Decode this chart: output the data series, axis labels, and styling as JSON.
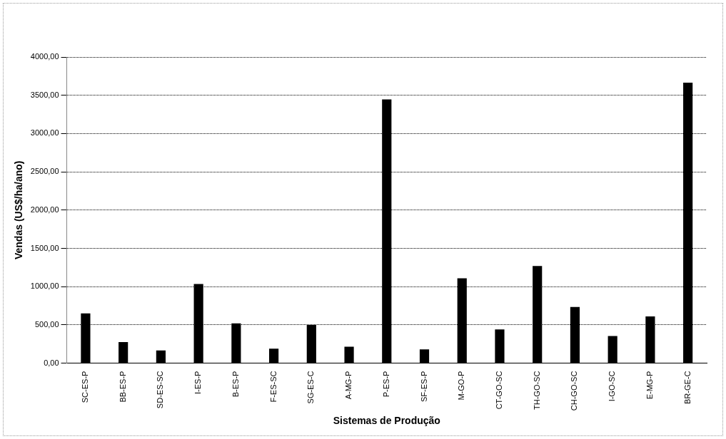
{
  "chart_data": {
    "type": "bar",
    "xlabel": "Sistemas de Produção",
    "ylabel": "Vendas (US$/ha/ano)",
    "categories": [
      "SC-ES-P",
      "BB-ES-P",
      "SD-ES-SC",
      "I-ES-P",
      "B-ES-P",
      "F-ES-SC",
      "SG-ES-C",
      "A-MG-P",
      "P-ES-P",
      "SF-ES-P",
      "M-GO-P",
      "CT-GO-SC",
      "TH-GO-SC",
      "CH-GO-SC",
      "I-GO-SC",
      "E-MG-P",
      "BR-GE-C"
    ],
    "values": [
      650,
      275,
      165,
      1035,
      520,
      190,
      500,
      215,
      3445,
      180,
      1110,
      440,
      1270,
      735,
      355,
      610,
      3665
    ],
    "color": "#000000",
    "ylim": [
      0,
      4000
    ],
    "yticks": [
      {
        "value": 0,
        "label": "0,00"
      },
      {
        "value": 500,
        "label": "500,00"
      },
      {
        "value": 1000,
        "label": "1000,00"
      },
      {
        "value": 1500,
        "label": "1500,00"
      },
      {
        "value": 2000,
        "label": "2000,00"
      },
      {
        "value": 2500,
        "label": "2500,00"
      },
      {
        "value": 3000,
        "label": "3000,00"
      },
      {
        "value": 3500,
        "label": "3500,00"
      },
      {
        "value": 4000,
        "label": "4000,00"
      }
    ],
    "grid": "y",
    "legend": false
  }
}
